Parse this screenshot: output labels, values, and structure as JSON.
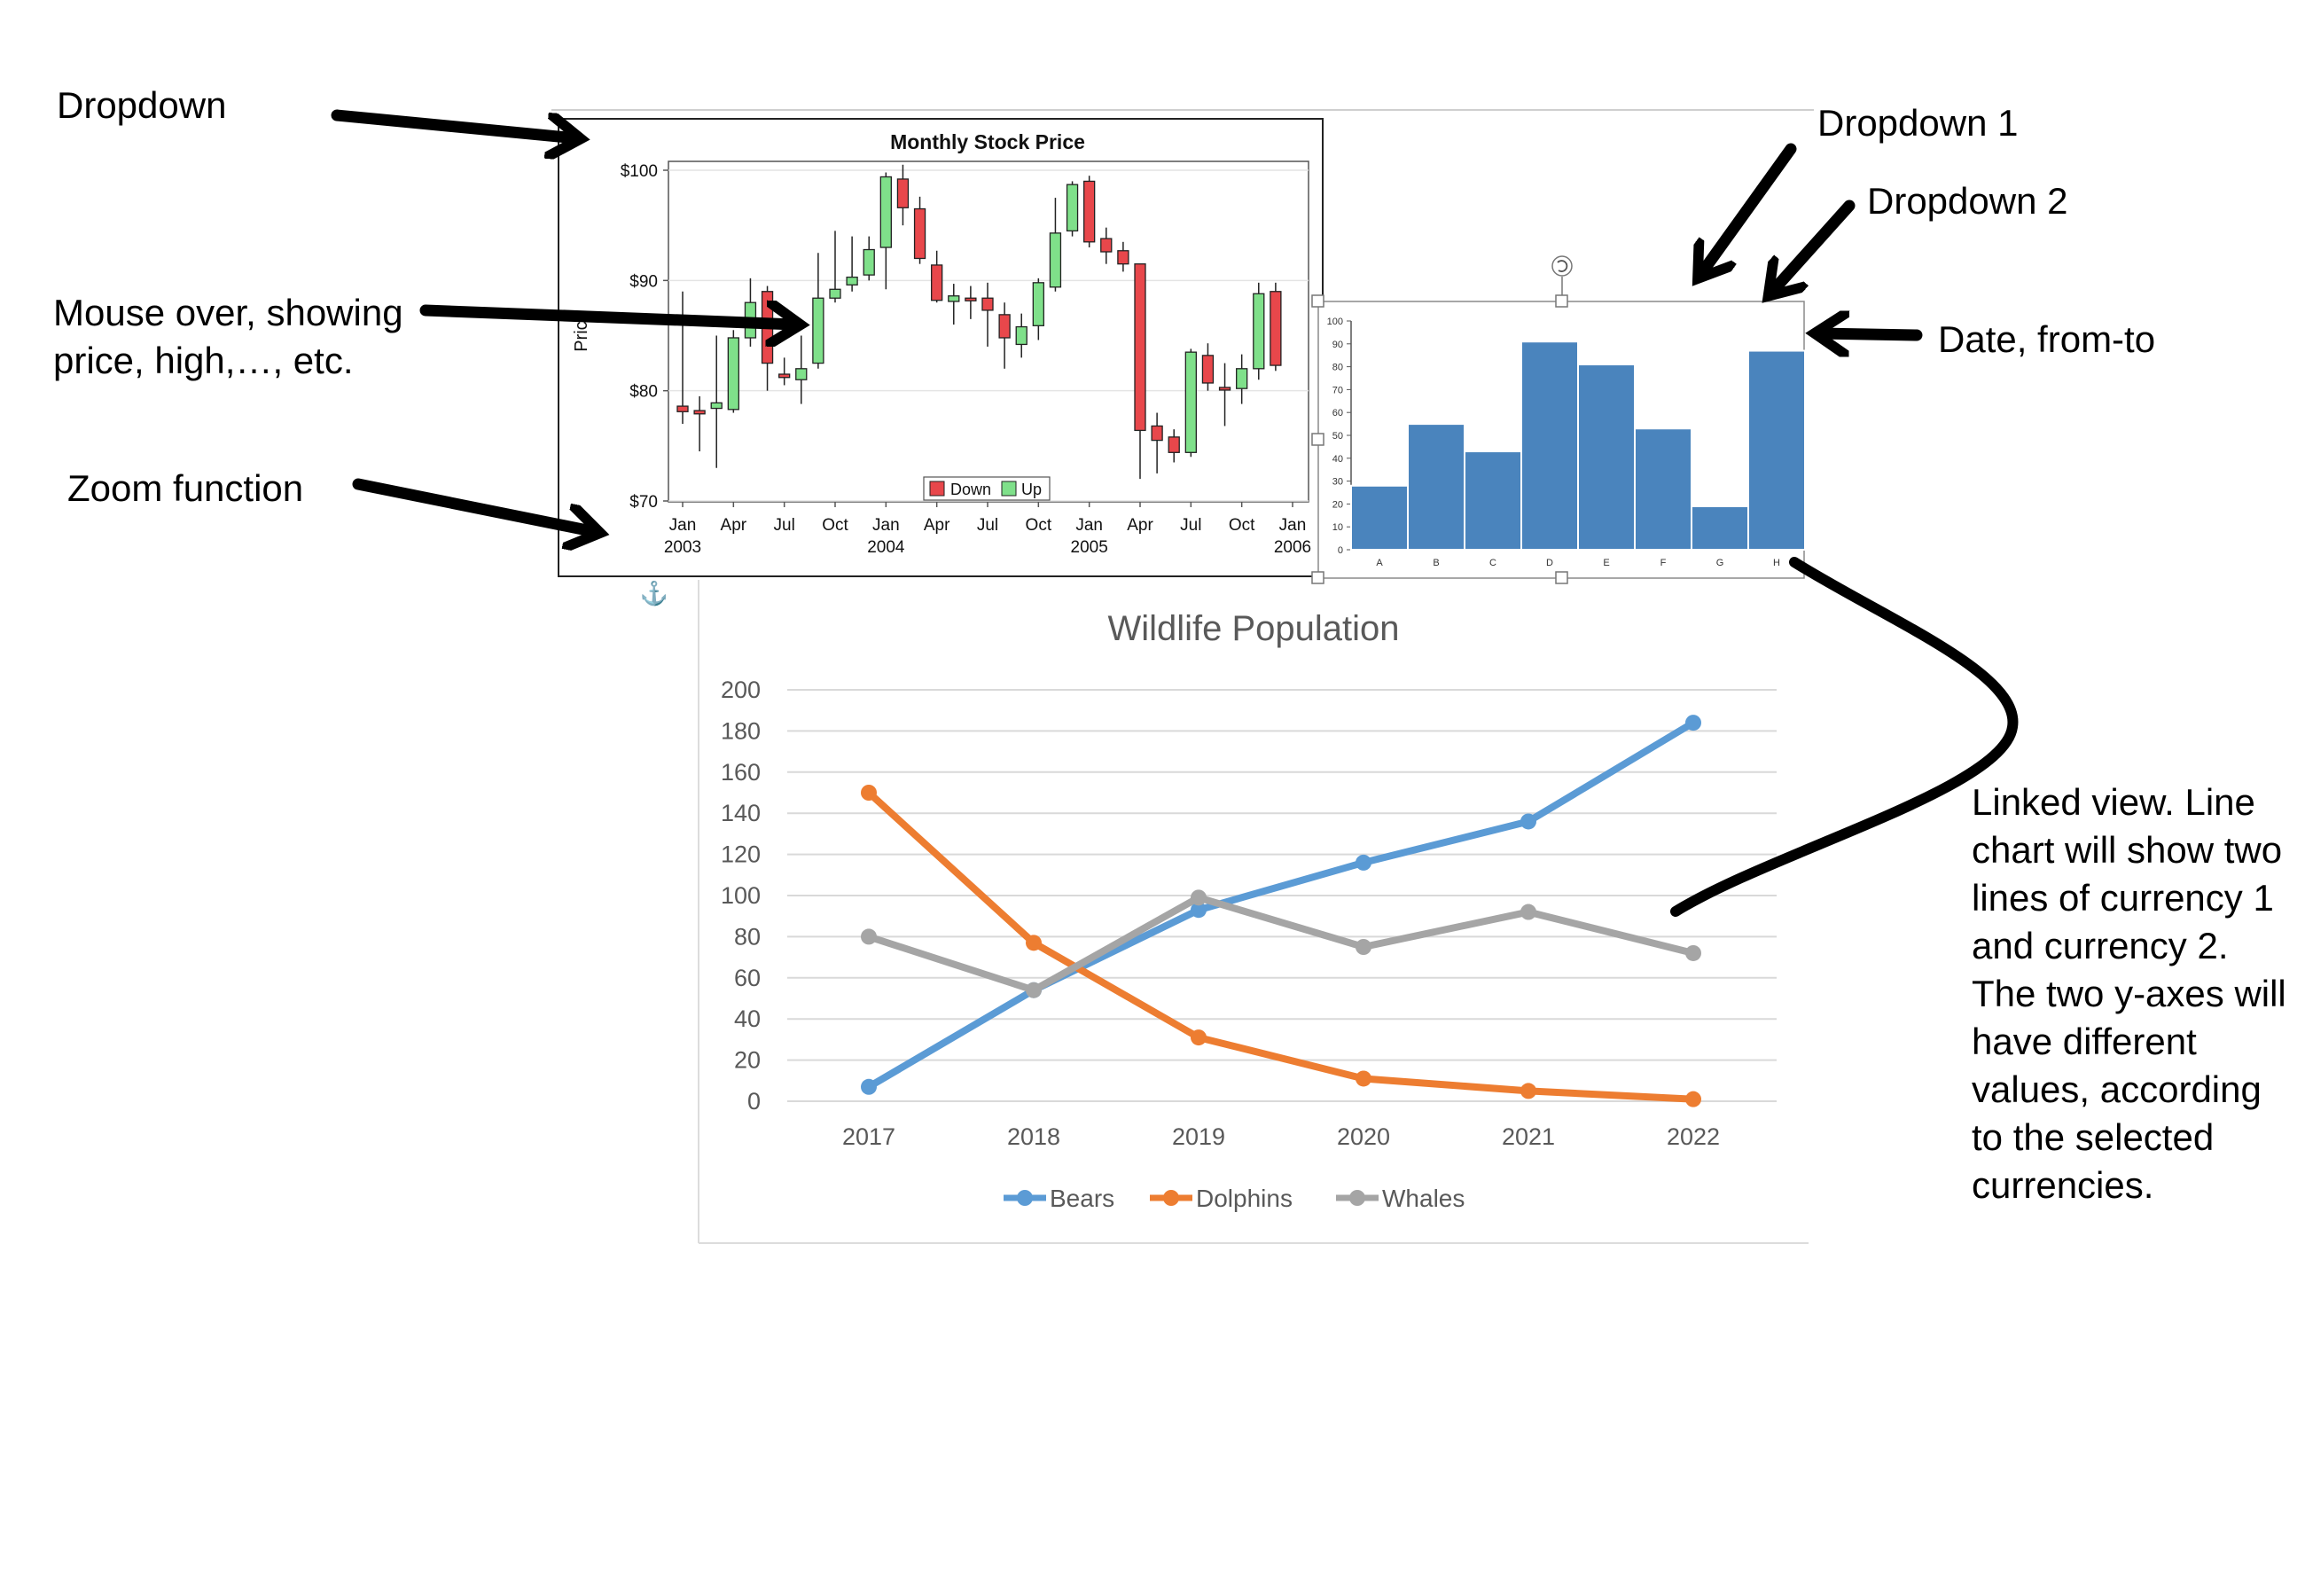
{
  "annotations": {
    "dropdown": "Dropdown",
    "mouse_over": "Mouse over, showing\nprice, high,…, etc.",
    "zoom": "Zoom function",
    "dropdown_1": "Dropdown 1",
    "dropdown_2": "Dropdown 2",
    "date_range": "Date, from-to",
    "linked_view": "Linked view. Line\nchart will show two\nlines of currency 1\nand currency 2.\nThe two y-axes will\nhave different\nvalues, according\nto the selected\ncurrencies."
  },
  "chart_data": [
    {
      "type": "candlestick",
      "title": "Monthly Stock Price",
      "ylabel": "Price",
      "ylim": [
        70,
        100
      ],
      "y_ticks": [
        "$100",
        "$90",
        "$80",
        "$70"
      ],
      "x_ticks": [
        {
          "month": "Jan",
          "year": "2003"
        },
        {
          "month": "Apr",
          "year": ""
        },
        {
          "month": "Jul",
          "year": ""
        },
        {
          "month": "Oct",
          "year": ""
        },
        {
          "month": "Jan",
          "year": "2004"
        },
        {
          "month": "Apr",
          "year": ""
        },
        {
          "month": "Jul",
          "year": ""
        },
        {
          "month": "Oct",
          "year": ""
        },
        {
          "month": "Jan",
          "year": "2005"
        },
        {
          "month": "Apr",
          "year": ""
        },
        {
          "month": "Jul",
          "year": ""
        },
        {
          "month": "Oct",
          "year": ""
        },
        {
          "month": "Jan",
          "year": "2006"
        }
      ],
      "legend": [
        "Down",
        "Up"
      ],
      "colors": {
        "down": "#e8474b",
        "up": "#7fe08a"
      },
      "candles": [
        {
          "date": "2003-01",
          "open": 78.6,
          "close": 78.1,
          "high": 89.0,
          "low": 77.0
        },
        {
          "date": "2003-02",
          "open": 78.2,
          "close": 77.9,
          "high": 79.5,
          "low": 74.5
        },
        {
          "date": "2003-03",
          "open": 78.4,
          "close": 78.9,
          "high": 85.0,
          "low": 73.0
        },
        {
          "date": "2003-04",
          "open": 78.3,
          "close": 84.8,
          "high": 85.5,
          "low": 78.0
        },
        {
          "date": "2003-05",
          "open": 84.8,
          "close": 88.0,
          "high": 90.2,
          "low": 84.0
        },
        {
          "date": "2003-06",
          "open": 89.0,
          "close": 82.5,
          "high": 89.5,
          "low": 80.0
        },
        {
          "date": "2003-07",
          "open": 81.5,
          "close": 81.2,
          "high": 83.0,
          "low": 80.5
        },
        {
          "date": "2003-08",
          "open": 81.0,
          "close": 82.0,
          "high": 85.0,
          "low": 78.8
        },
        {
          "date": "2003-09",
          "open": 82.5,
          "close": 88.4,
          "high": 92.5,
          "low": 82.0
        },
        {
          "date": "2003-10",
          "open": 88.4,
          "close": 89.2,
          "high": 94.5,
          "low": 88.0
        },
        {
          "date": "2003-11",
          "open": 89.6,
          "close": 90.3,
          "high": 94.0,
          "low": 89.0
        },
        {
          "date": "2003-12",
          "open": 90.5,
          "close": 92.8,
          "high": 94.0,
          "low": 90.0
        },
        {
          "date": "2004-01",
          "open": 93.0,
          "close": 99.4,
          "high": 99.8,
          "low": 89.2
        },
        {
          "date": "2004-02",
          "open": 99.2,
          "close": 96.6,
          "high": 100.5,
          "low": 95.0
        },
        {
          "date": "2004-03",
          "open": 96.5,
          "close": 92.0,
          "high": 97.6,
          "low": 91.5
        },
        {
          "date": "2004-04",
          "open": 91.4,
          "close": 88.2,
          "high": 92.7,
          "low": 88.0
        },
        {
          "date": "2004-05",
          "open": 88.1,
          "close": 88.6,
          "high": 89.7,
          "low": 86.0
        },
        {
          "date": "2004-06",
          "open": 88.4,
          "close": 88.3,
          "high": 89.5,
          "low": 86.5
        },
        {
          "date": "2004-07",
          "open": 88.4,
          "close": 87.3,
          "high": 89.8,
          "low": 84.0
        },
        {
          "date": "2004-08",
          "open": 86.9,
          "close": 84.8,
          "high": 88.0,
          "low": 82.0
        },
        {
          "date": "2004-09",
          "open": 84.2,
          "close": 85.8,
          "high": 87.0,
          "low": 83.0
        },
        {
          "date": "2004-10",
          "open": 85.9,
          "close": 89.8,
          "high": 90.2,
          "low": 84.6
        },
        {
          "date": "2004-11",
          "open": 89.4,
          "close": 94.3,
          "high": 97.5,
          "low": 89.0
        },
        {
          "date": "2004-12",
          "open": 94.5,
          "close": 98.7,
          "high": 99.0,
          "low": 94.0
        },
        {
          "date": "2005-01",
          "open": 99.0,
          "close": 93.5,
          "high": 99.5,
          "low": 93.0
        },
        {
          "date": "2005-02",
          "open": 93.8,
          "close": 92.6,
          "high": 94.8,
          "low": 91.5
        },
        {
          "date": "2005-03",
          "open": 92.7,
          "close": 91.5,
          "high": 93.5,
          "low": 90.8
        },
        {
          "date": "2005-04",
          "open": 91.5,
          "close": 76.4,
          "high": 91.5,
          "low": 72.0
        },
        {
          "date": "2005-05",
          "open": 76.8,
          "close": 75.5,
          "high": 78.0,
          "low": 72.5
        },
        {
          "date": "2005-06",
          "open": 75.8,
          "close": 74.4,
          "high": 76.5,
          "low": 73.5
        },
        {
          "date": "2005-07",
          "open": 74.4,
          "close": 83.5,
          "high": 83.8,
          "low": 74.0
        },
        {
          "date": "2005-08",
          "open": 83.2,
          "close": 80.7,
          "high": 84.3,
          "low": 80.0
        },
        {
          "date": "2005-09",
          "open": 80.3,
          "close": 80.2,
          "high": 82.5,
          "low": 76.8
        },
        {
          "date": "2005-10",
          "open": 80.2,
          "close": 82.0,
          "high": 83.3,
          "low": 78.8
        },
        {
          "date": "2005-11",
          "open": 82.0,
          "close": 88.8,
          "high": 89.8,
          "low": 81.0
        },
        {
          "date": "2005-12",
          "open": 89.0,
          "close": 82.3,
          "high": 89.8,
          "low": 81.8
        }
      ]
    },
    {
      "type": "bar",
      "categories": [
        "A",
        "B",
        "C",
        "D",
        "E",
        "F",
        "G",
        "H"
      ],
      "values": [
        28,
        55,
        43,
        91,
        81,
        53,
        19,
        87
      ],
      "ylim": [
        0,
        100
      ],
      "y_ticks": [
        0,
        10,
        20,
        30,
        40,
        50,
        60,
        70,
        80,
        90,
        100
      ],
      "color": "#4a84bd"
    },
    {
      "type": "line",
      "title": "Wildlife Population",
      "categories": [
        "2017",
        "2018",
        "2019",
        "2020",
        "2021",
        "2022"
      ],
      "ylim": [
        0,
        200
      ],
      "y_ticks": [
        0,
        20,
        40,
        60,
        80,
        100,
        120,
        140,
        160,
        180,
        200
      ],
      "legend_position": "bottom",
      "series": [
        {
          "name": "Bears",
          "color": "#5b9bd5",
          "values": [
            7,
            54,
            93,
            116,
            136,
            184
          ]
        },
        {
          "name": "Dolphins",
          "color": "#ed7d31",
          "values": [
            150,
            77,
            31,
            11,
            5,
            1
          ]
        },
        {
          "name": "Whales",
          "color": "#a5a5a5",
          "values": [
            80,
            54,
            99,
            75,
            92,
            72
          ]
        }
      ]
    }
  ]
}
